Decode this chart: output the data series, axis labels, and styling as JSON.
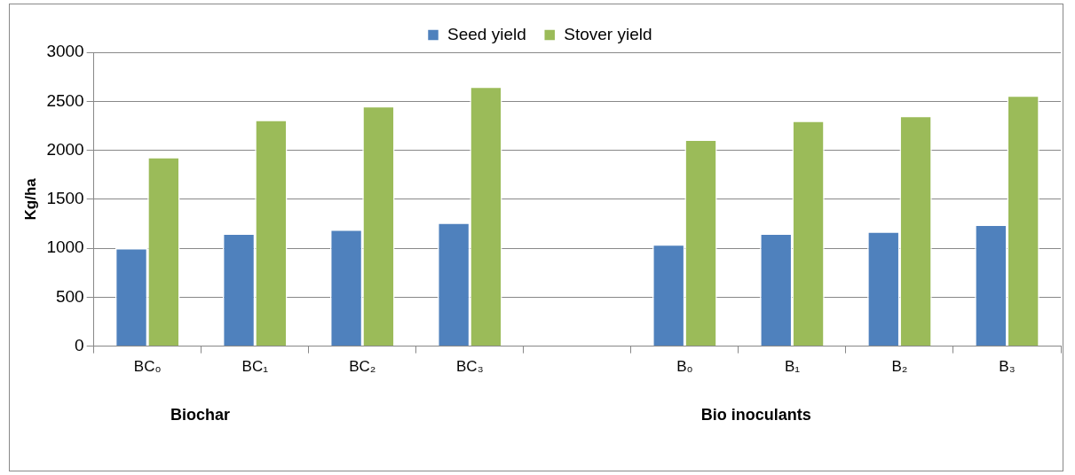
{
  "chart_data": {
    "type": "bar",
    "ylabel": "Kg/ha",
    "categories": [
      "BC₀",
      "BC₁",
      "BC₂",
      "BC₃",
      null,
      "B₀",
      "B₁",
      "B₂",
      "B₃"
    ],
    "series": [
      {
        "name": "Seed yield",
        "color": "#4f81bd",
        "values": [
          1000,
          1150,
          1190,
          1260,
          null,
          1040,
          1150,
          1170,
          1240
        ]
      },
      {
        "name": "Stover yield",
        "color": "#9bbb59",
        "values": [
          1930,
          2310,
          2450,
          2650,
          null,
          2110,
          2300,
          2350,
          2560
        ]
      }
    ],
    "ylim": [
      0,
      3000
    ],
    "yticks": [
      0,
      500,
      1000,
      1500,
      2000,
      2500,
      3000
    ],
    "grid": "y",
    "legend": "top",
    "annotations": [
      "Biochar",
      "Bio inoculants"
    ]
  }
}
